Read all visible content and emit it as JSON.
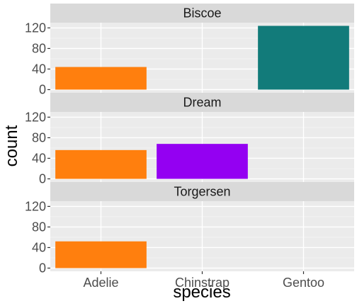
{
  "chart_data": {
    "type": "bar",
    "xlabel": "species",
    "ylabel": "count",
    "categories": [
      "Adelie",
      "Chinstrap",
      "Gentoo"
    ],
    "ylim": [
      0,
      124
    ],
    "yticks": [
      "0",
      "40",
      "80",
      "120"
    ],
    "ytick_values": [
      0,
      40,
      80,
      120
    ],
    "grid": true,
    "colors": {
      "Adelie": "#ff7f0e",
      "Chinstrap": "#9400f2",
      "Gentoo": "#127b7a"
    },
    "facets": [
      {
        "name": "Biscoe",
        "values": [
          44,
          0,
          124
        ]
      },
      {
        "name": "Dream",
        "values": [
          56,
          68,
          0
        ]
      },
      {
        "name": "Torgersen",
        "values": [
          52,
          0,
          0
        ]
      }
    ]
  }
}
